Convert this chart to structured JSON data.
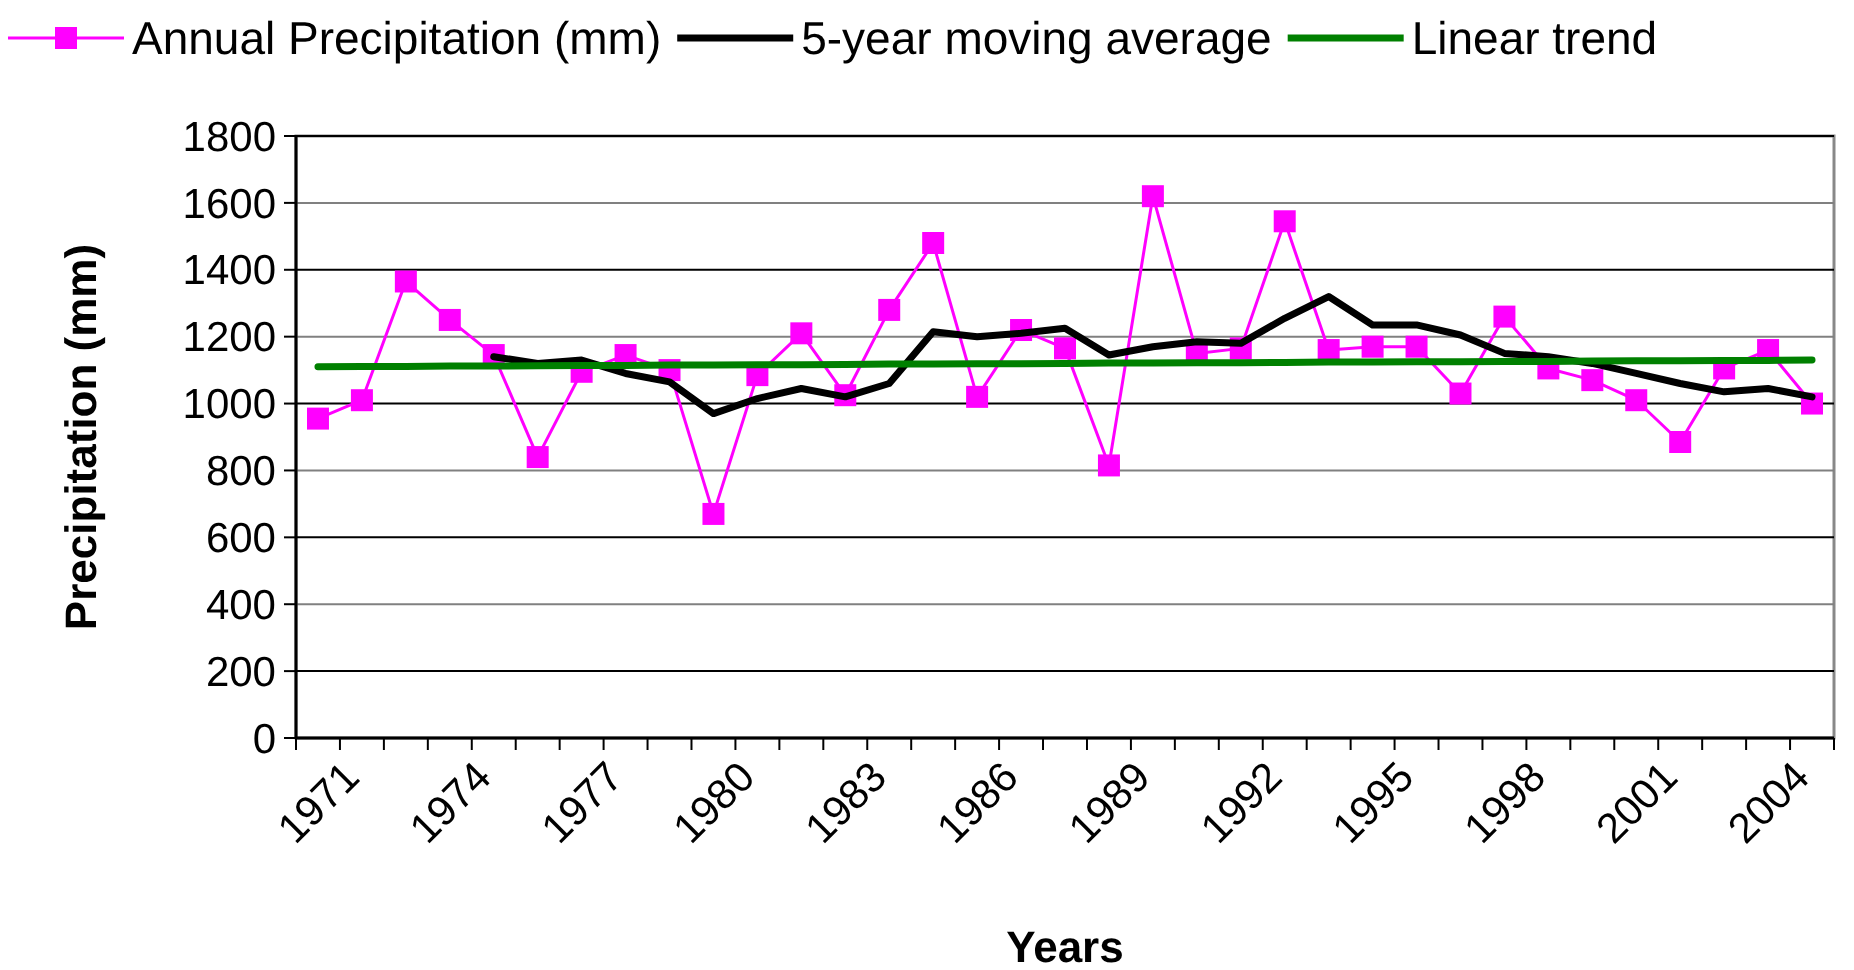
{
  "chart_data": {
    "type": "line",
    "xlabel": "Years",
    "ylabel": "Precipitation (mm)",
    "categories": [
      "1971",
      null,
      null,
      "1974",
      null,
      null,
      "1977",
      null,
      null,
      "1980",
      null,
      null,
      "1983",
      null,
      null,
      "1986",
      null,
      null,
      "1989",
      null,
      null,
      "1992",
      null,
      null,
      "1995",
      null,
      null,
      "1998",
      null,
      null,
      "2001",
      null,
      null,
      "2004",
      null
    ],
    "series": [
      {
        "name": "Annual Precipitation (mm)",
        "color": "#ff00ff",
        "marker": "square",
        "values": [
          955,
          1010,
          1365,
          1250,
          1145,
          840,
          1095,
          1145,
          1100,
          670,
          1085,
          1210,
          1025,
          1280,
          1480,
          1020,
          1220,
          1165,
          815,
          1620,
          1150,
          1165,
          1545,
          1160,
          1170,
          1170,
          1030,
          1260,
          1105,
          1070,
          1010,
          885,
          1105,
          1160,
          1000
        ]
      },
      {
        "name": "5-year moving average",
        "color": "#000000",
        "marker": "none",
        "values": [
          null,
          null,
          null,
          null,
          1140,
          1120,
          1130,
          1090,
          1065,
          970,
          1015,
          1045,
          1020,
          1060,
          1215,
          1200,
          1210,
          1225,
          1145,
          1170,
          1185,
          1180,
          1255,
          1320,
          1235,
          1235,
          1205,
          1150,
          1140,
          1120,
          1090,
          1060,
          1035,
          1045,
          1020
        ]
      },
      {
        "name": "Linear trend",
        "color": "#008000",
        "marker": "none",
        "values": [
          1110,
          1111,
          1111,
          1112,
          1112,
          1113,
          1114,
          1114,
          1115,
          1115,
          1116,
          1116,
          1117,
          1118,
          1118,
          1119,
          1119,
          1120,
          1121,
          1121,
          1122,
          1122,
          1123,
          1124,
          1124,
          1125,
          1125,
          1126,
          1126,
          1127,
          1128,
          1128,
          1129,
          1129,
          1130
        ]
      }
    ],
    "ylim": [
      0,
      1800
    ],
    "yticks": [
      0,
      200,
      400,
      600,
      800,
      1000,
      1200,
      1400,
      1600,
      1800
    ],
    "grid": "y",
    "legend": "top"
  }
}
